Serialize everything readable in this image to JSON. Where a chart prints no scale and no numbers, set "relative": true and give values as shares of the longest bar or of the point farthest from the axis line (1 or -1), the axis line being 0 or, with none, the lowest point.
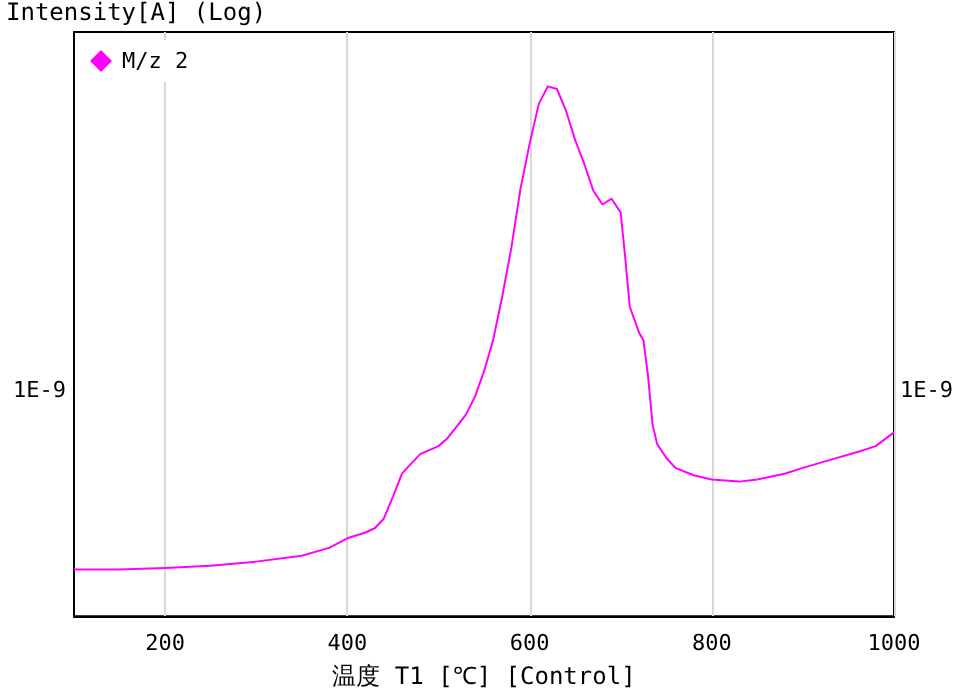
{
  "chart_data": {
    "type": "line",
    "xlabel": "温度 T1 [℃] [Control]",
    "ylabel": "Intensity[A] (Log)",
    "x": [
      100,
      150,
      200,
      250,
      300,
      350,
      380,
      400,
      420,
      430,
      440,
      450,
      460,
      470,
      480,
      500,
      510,
      520,
      530,
      540,
      550,
      560,
      570,
      580,
      590,
      600,
      610,
      620,
      630,
      640,
      650,
      660,
      670,
      680,
      690,
      700,
      705,
      710,
      720,
      725,
      730,
      735,
      740,
      750,
      760,
      780,
      800,
      830,
      850,
      880,
      900,
      930,
      960,
      980,
      1000
    ],
    "series": [
      {
        "name": "M/z 2",
        "color": "#ff00ff",
        "values": [
          0.088,
          0.088,
          0.091,
          0.095,
          0.103,
          0.114,
          0.129,
          0.147,
          0.158,
          0.166,
          0.184,
          0.225,
          0.269,
          0.288,
          0.306,
          0.321,
          0.336,
          0.358,
          0.38,
          0.414,
          0.462,
          0.521,
          0.603,
          0.695,
          0.806,
          0.891,
          0.966,
          1,
          0.995,
          0.954,
          0.899,
          0.854,
          0.803,
          0.777,
          0.788,
          0.762,
          0.677,
          0.584,
          0.536,
          0.521,
          0.454,
          0.362,
          0.325,
          0.299,
          0.28,
          0.266,
          0.258,
          0.254,
          0.258,
          0.269,
          0.28,
          0.295,
          0.31,
          0.321,
          0.347
        ]
      }
    ],
    "relative": true,
    "xlim": [
      100,
      1000
    ],
    "xticks": [
      200,
      400,
      600,
      800,
      1000
    ],
    "annotations": [
      "1E-9",
      "1E-9"
    ],
    "grid": "x",
    "legend": "top left",
    "line_style": "solid",
    "marker": "none"
  }
}
